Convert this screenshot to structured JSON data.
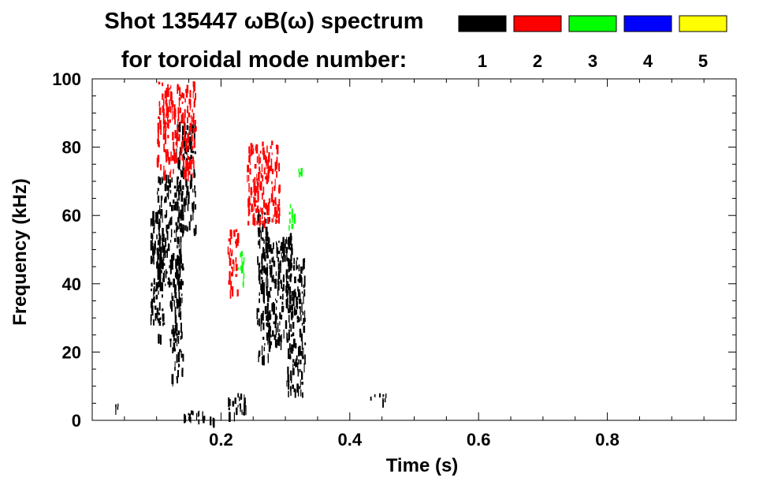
{
  "header": {
    "title": "Shot 135447 ωB(ω) spectrum",
    "subtitle": "for toroidal mode number:"
  },
  "chart_data": {
    "type": "scatter",
    "title": "Shot 135447 ωB(ω) spectrum",
    "xlabel": "Time (s)",
    "ylabel": "Frequency (kHz)",
    "xlim": [
      0.0,
      1.0
    ],
    "ylim": [
      0,
      100
    ],
    "x_ticks": [
      0.2,
      0.4,
      0.6,
      0.8
    ],
    "x_tick_labels": [
      "0.2",
      "0.4",
      "0.6",
      "0.8"
    ],
    "y_ticks": [
      0,
      20,
      40,
      60,
      80,
      100
    ],
    "y_tick_labels": [
      "0",
      "20",
      "40",
      "60",
      "80",
      "100"
    ],
    "grid": false,
    "legend_position": "top-right",
    "series": [
      {
        "name": "1",
        "color": "#000000",
        "regions": [
          {
            "t": [
              0.09,
              0.11
            ],
            "f": [
              25,
              62
            ]
          },
          {
            "t": [
              0.1,
              0.14
            ],
            "f": [
              40,
              72
            ]
          },
          {
            "t": [
              0.13,
              0.16
            ],
            "f": [
              55,
              88
            ]
          },
          {
            "t": [
              0.12,
              0.14
            ],
            "f": [
              12,
              50
            ]
          },
          {
            "t": [
              0.255,
              0.275
            ],
            "f": [
              18,
              62
            ]
          },
          {
            "t": [
              0.27,
              0.31
            ],
            "f": [
              22,
              55
            ]
          },
          {
            "t": [
              0.3,
              0.33
            ],
            "f": [
              8,
              48
            ]
          },
          {
            "t": [
              0.035,
              0.045
            ],
            "f": [
              2,
              5
            ]
          },
          {
            "t": [
              0.14,
              0.19
            ],
            "f": [
              0,
              3
            ]
          },
          {
            "t": [
              0.21,
              0.24
            ],
            "f": [
              2,
              8
            ]
          },
          {
            "t": [
              0.43,
              0.46
            ],
            "f": [
              6,
              8
            ]
          }
        ]
      },
      {
        "name": "2",
        "color": "#ff0000",
        "regions": [
          {
            "t": [
              0.1,
              0.16
            ],
            "f": [
              72,
              100
            ]
          },
          {
            "t": [
              0.24,
              0.29
            ],
            "f": [
              58,
              82
            ]
          },
          {
            "t": [
              0.21,
              0.225
            ],
            "f": [
              38,
              56
            ]
          }
        ]
      },
      {
        "name": "3",
        "color": "#00ff00",
        "regions": [
          {
            "t": [
              0.225,
              0.235
            ],
            "f": [
              40,
              50
            ]
          },
          {
            "t": [
              0.305,
              0.315
            ],
            "f": [
              57,
              64
            ]
          },
          {
            "t": [
              0.32,
              0.325
            ],
            "f": [
              72,
              78
            ]
          }
        ]
      },
      {
        "name": "4",
        "color": "#0000ff",
        "regions": []
      },
      {
        "name": "5",
        "color": "#ffff00",
        "regions": []
      }
    ]
  }
}
